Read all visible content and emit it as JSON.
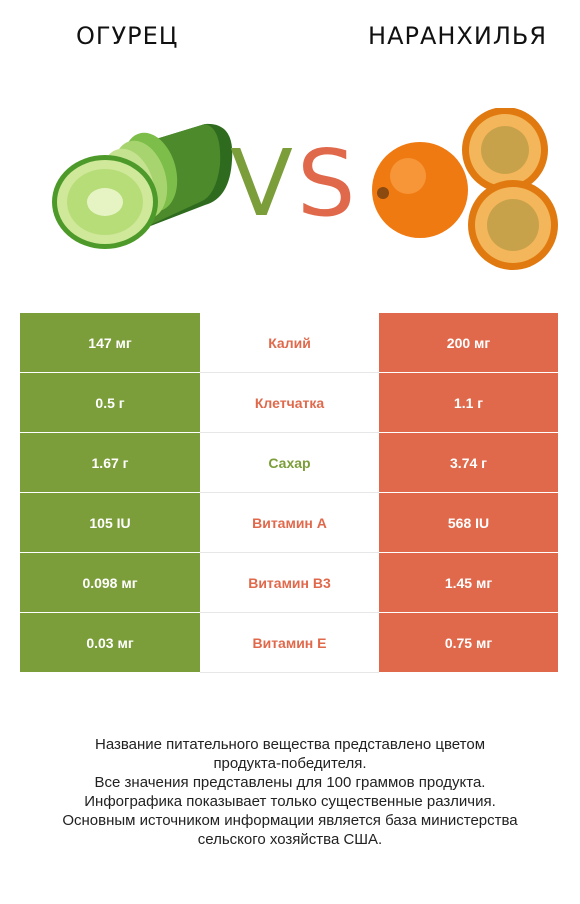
{
  "header": {
    "left_title": "ОГУРЕЦ",
    "right_title": "НАРАНХИЛЬЯ",
    "vs_v": "V",
    "vs_s": "S"
  },
  "colors": {
    "left": "#7b9e3a",
    "right": "#e0694c"
  },
  "rows": [
    {
      "left": "147 мг",
      "nutrient": "Калий",
      "right": "200 мг",
      "winner": "right"
    },
    {
      "left": "0.5 г",
      "nutrient": "Клетчатка",
      "right": "1.1 г",
      "winner": "right"
    },
    {
      "left": "1.67 г",
      "nutrient": "Сахар",
      "right": "3.74 г",
      "winner": "left"
    },
    {
      "left": "105 IU",
      "nutrient": "Витамин A",
      "right": "568 IU",
      "winner": "right"
    },
    {
      "left": "0.098 мг",
      "nutrient": "Витамин B3",
      "right": "1.45 мг",
      "winner": "right"
    },
    {
      "left": "0.03 мг",
      "nutrient": "Витамин E",
      "right": "0.75 мг",
      "winner": "right"
    }
  ],
  "footer": {
    "line1": "Название питательного вещества представлено цветом",
    "line2": "продукта-победителя.",
    "line3": "Все значения представлены для 100 граммов продукта.",
    "line4": "Инфографика показывает только существенные различия.",
    "line5": "Основным источником информации является база министерства",
    "line6": "сельского хозяйства США."
  }
}
